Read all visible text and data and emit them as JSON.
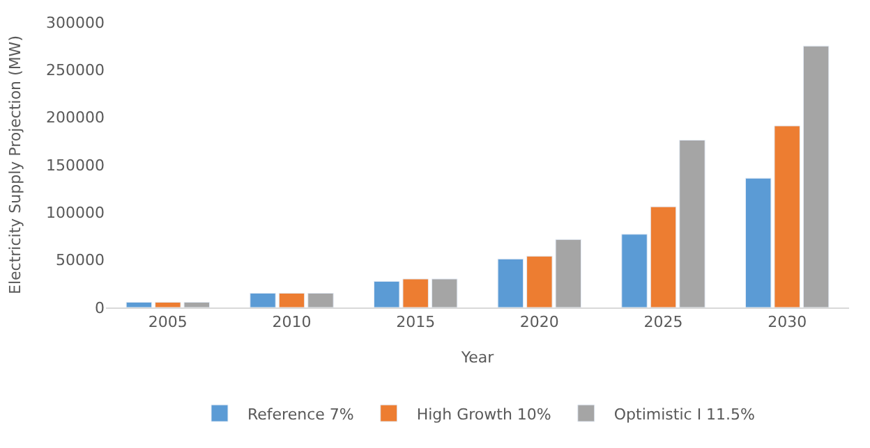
{
  "chart_data": {
    "type": "bar",
    "xlabel": "Year",
    "ylabel": "Electricity Supply Projection (MW)",
    "categories": [
      "2005",
      "2010",
      "2015",
      "2020",
      "2025",
      "2030"
    ],
    "series": [
      {
        "name": "Reference 7%",
        "color": "#5b9bd5",
        "values": [
          5500,
          15000,
          27500,
          51000,
          77000,
          136000
        ]
      },
      {
        "name": "High Growth 10%",
        "color": "#ed7d31",
        "values": [
          5500,
          15000,
          30000,
          54000,
          106000,
          191000
        ]
      },
      {
        "name": "Optimistic I 11.5%",
        "color": "#a5a5a5",
        "values": [
          5500,
          15000,
          30000,
          71500,
          176000,
          275000
        ]
      }
    ],
    "ylim": [
      0,
      300000
    ],
    "yticks": [
      0,
      50000,
      100000,
      150000,
      200000,
      250000,
      300000
    ],
    "grid": false,
    "legend": "bottom"
  }
}
